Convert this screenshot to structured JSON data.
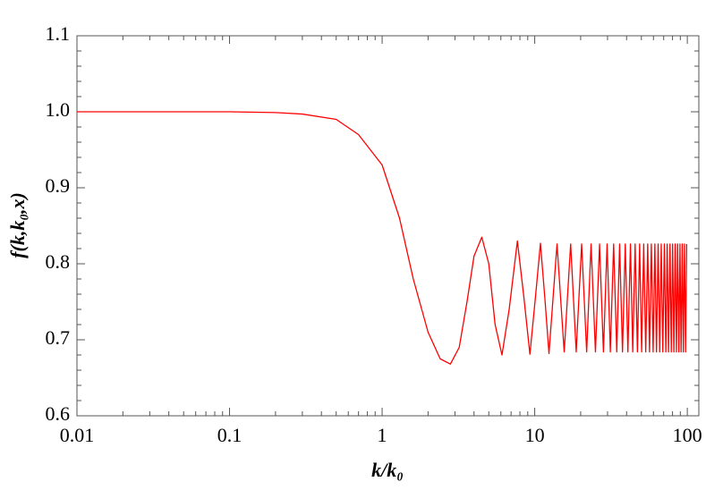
{
  "chart_data": {
    "type": "line",
    "xlabel": "k/k₀",
    "ylabel": "f(k,k₀,x)",
    "xscale": "log",
    "xlim": [
      0.01,
      119
    ],
    "ylim": [
      0.6,
      1.1
    ],
    "xticks": [
      0.01,
      0.1,
      1,
      10,
      100
    ],
    "yticks": [
      0.6,
      0.7,
      0.8,
      0.9,
      {
        "value": 1,
        "label": "1.0"
      },
      1.1
    ],
    "series": [
      {
        "color": "#ff0000",
        "x": [
          0.01,
          0.1,
          0.2,
          0.3,
          0.5,
          0.7,
          1.0,
          1.3,
          1.6,
          2.0,
          2.4,
          2.8,
          3.2,
          3.6,
          4.0,
          4.5,
          5.0,
          5.5,
          6.1,
          6.8,
          7.7,
          8.5,
          9.3,
          10.1,
          10.9,
          11.65,
          12.4,
          14.0,
          15.6,
          17.2,
          18.7,
          20.3,
          21.9,
          23.4,
          25.0,
          26.6,
          28.2,
          29.8,
          31.3,
          32.9,
          34.5,
          36.0,
          37.6,
          39.2,
          40.8,
          42.4,
          43.9,
          45.5,
          47.1,
          48.7,
          50.2,
          51.8,
          53.4,
          55.0,
          56.5,
          58.1,
          59.7,
          61.3,
          62.8,
          64.4,
          66.0,
          67.5,
          69.1,
          70.7,
          72.3,
          73.8,
          75.4,
          77.0,
          78.5,
          80.1,
          81.7,
          83.3,
          84.8,
          86.4,
          88.0,
          89.5,
          91.1,
          92.7,
          94.2,
          95.8,
          97.4,
          99.0
        ],
        "values": [
          1.0,
          1.0,
          0.999,
          0.997,
          0.99,
          0.97,
          0.93,
          0.86,
          0.78,
          0.71,
          0.675,
          0.668,
          0.69,
          0.75,
          0.81,
          0.835,
          0.8,
          0.72,
          0.68,
          0.74,
          0.83,
          0.755,
          0.681,
          0.755,
          0.827,
          0.755,
          0.682,
          0.826,
          0.684,
          0.826,
          0.684,
          0.826,
          0.684,
          0.826,
          0.684,
          0.826,
          0.684,
          0.826,
          0.684,
          0.826,
          0.684,
          0.826,
          0.684,
          0.826,
          0.684,
          0.826,
          0.684,
          0.826,
          0.684,
          0.826,
          0.684,
          0.826,
          0.684,
          0.826,
          0.684,
          0.826,
          0.684,
          0.826,
          0.684,
          0.826,
          0.684,
          0.826,
          0.684,
          0.826,
          0.684,
          0.826,
          0.684,
          0.826,
          0.684,
          0.826,
          0.684,
          0.826,
          0.684,
          0.826,
          0.684,
          0.826,
          0.684,
          0.826,
          0.684,
          0.826,
          0.684,
          0.826
        ]
      }
    ]
  }
}
